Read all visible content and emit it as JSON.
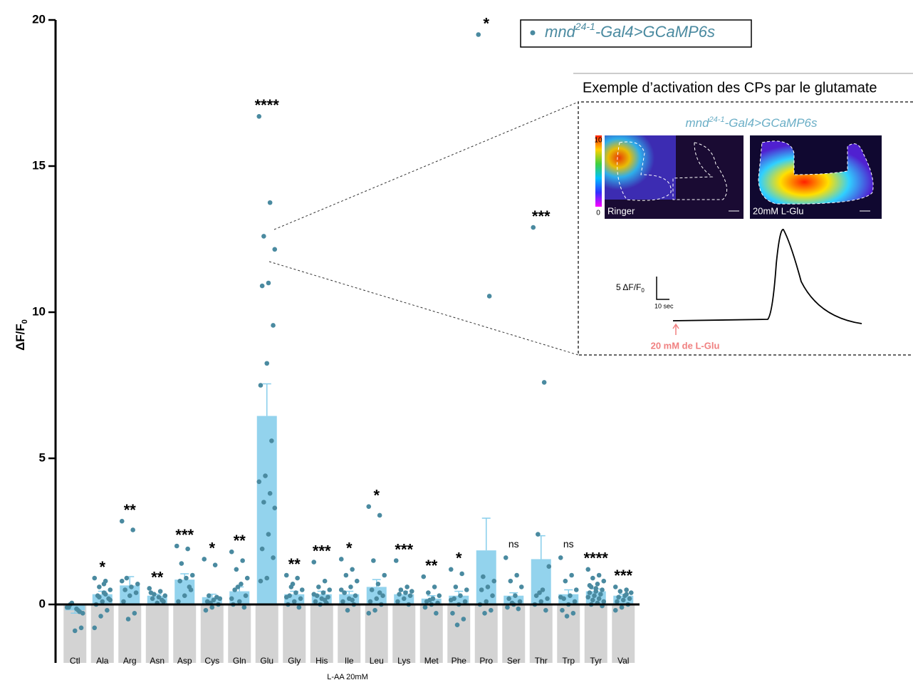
{
  "chart_data": {
    "type": "bar",
    "y_label": {
      "main": "ΔF/F",
      "sub": "0"
    },
    "x_label": "L-AA 20mM",
    "categories": [
      "Ctl",
      "Ala",
      "Arg",
      "Asn",
      "Asp",
      "Cys",
      "Gln",
      "Glu",
      "Gly",
      "His",
      "Ile",
      "Leu",
      "Lys",
      "Met",
      "Phe",
      "Pro",
      "Ser",
      "Thr",
      "Trp",
      "Tyr",
      "Val"
    ],
    "values": [
      -0.2,
      0.35,
      0.65,
      0.3,
      0.85,
      0.25,
      0.45,
      6.45,
      0.35,
      0.35,
      0.35,
      0.6,
      0.35,
      0.2,
      0.3,
      1.85,
      0.3,
      1.55,
      0.35,
      0.45,
      0.3
    ],
    "errors": [
      0.1,
      0.1,
      0.3,
      0.05,
      0.2,
      0.1,
      0.15,
      1.1,
      0.1,
      0.1,
      0.1,
      0.25,
      0.1,
      0.1,
      0.15,
      1.1,
      0.1,
      0.8,
      0.15,
      0.08,
      0.05
    ],
    "points": [
      [
        -0.1,
        -0.2,
        0.05,
        -0.3,
        -0.15,
        0.0,
        -0.8,
        -0.9,
        -0.1,
        -0.25
      ],
      [
        0.9,
        0.8,
        0.6,
        0.5,
        0.4,
        0.3,
        0.2,
        0.1,
        0.0,
        -0.2,
        -0.4,
        -0.8,
        0.35,
        0.25,
        0.15,
        0.7
      ],
      [
        2.85,
        2.55,
        0.9,
        0.7,
        0.6,
        0.5,
        0.4,
        0.3,
        0.1,
        -0.3,
        -0.5,
        0.8
      ],
      [
        0.55,
        0.45,
        0.35,
        0.3,
        0.25,
        0.2,
        0.1,
        0.05,
        0.4,
        0.15
      ],
      [
        2.0,
        1.9,
        1.4,
        1.0,
        0.9,
        0.8,
        0.5,
        0.3,
        0.1,
        0.6
      ],
      [
        1.55,
        1.35,
        0.3,
        0.2,
        0.15,
        0.1,
        0.0,
        -0.1,
        -0.2,
        0.25,
        0.05
      ],
      [
        1.8,
        1.5,
        1.2,
        0.9,
        0.7,
        0.5,
        0.3,
        0.1,
        0.0,
        -0.1,
        0.6,
        0.2
      ],
      [
        16.7,
        13.75,
        12.6,
        12.15,
        11.0,
        10.9,
        9.55,
        8.25,
        7.5,
        5.6,
        4.4,
        4.2,
        3.8,
        3.5,
        3.3,
        2.4,
        1.9,
        1.6,
        0.9,
        0.8
      ],
      [
        1.0,
        0.9,
        0.6,
        0.5,
        0.4,
        0.3,
        0.2,
        0.1,
        0.0,
        -0.1,
        0.7,
        0.25
      ],
      [
        1.45,
        0.8,
        0.6,
        0.5,
        0.4,
        0.3,
        0.25,
        0.2,
        0.1,
        0.05,
        0.0,
        0.35,
        0.15
      ],
      [
        1.55,
        1.2,
        1.0,
        0.8,
        0.6,
        0.4,
        0.3,
        0.2,
        0.1,
        0.0,
        -0.2,
        0.5,
        0.15
      ],
      [
        3.35,
        3.05,
        1.5,
        1.0,
        0.7,
        0.5,
        0.3,
        0.2,
        0.1,
        0.0,
        -0.2,
        -0.3,
        0.4
      ],
      [
        1.5,
        0.6,
        0.5,
        0.45,
        0.4,
        0.35,
        0.3,
        0.2,
        0.1,
        0.0
      ],
      [
        0.95,
        0.6,
        0.4,
        0.3,
        0.2,
        0.1,
        0.05,
        0.0,
        -0.1,
        -0.3,
        0.15
      ],
      [
        1.2,
        1.05,
        0.6,
        0.5,
        0.3,
        0.2,
        0.1,
        0.0,
        -0.3,
        -0.5,
        -0.7,
        0.15
      ],
      [
        19.5,
        10.55,
        0.95,
        0.8,
        0.6,
        0.5,
        0.3,
        0.1,
        0.0,
        -0.2,
        -0.3
      ],
      [
        1.6,
        1.0,
        0.8,
        0.6,
        0.3,
        0.2,
        0.1,
        0.0,
        -0.1,
        -0.15,
        0.05
      ],
      [
        12.9,
        7.6,
        2.4,
        1.3,
        0.5,
        0.3,
        0.2,
        0.1,
        0.0,
        -0.2,
        0.4
      ],
      [
        1.6,
        1.0,
        0.8,
        0.5,
        0.3,
        0.2,
        0.1,
        0.0,
        -0.2,
        -0.3,
        -0.4,
        0.25
      ],
      [
        1.2,
        1.0,
        0.9,
        0.8,
        0.7,
        0.6,
        0.5,
        0.45,
        0.4,
        0.35,
        0.3,
        0.25,
        0.2,
        0.15,
        0.1,
        0.05,
        0.0,
        -0.05,
        0.55,
        0.65
      ],
      [
        0.6,
        0.5,
        0.45,
        0.4,
        0.3,
        0.25,
        0.2,
        0.15,
        0.1,
        0.0,
        -0.1,
        -0.2,
        0.35
      ]
    ],
    "significance": [
      null,
      "*",
      "**",
      "**",
      "***",
      "*",
      "**",
      "****",
      "**",
      "***",
      "*",
      "*",
      "***",
      "**",
      "*",
      "*",
      "ns",
      "***",
      "ns",
      "****",
      "***"
    ],
    "color": "#87ceeb",
    "point_color": "#4a8aa0",
    "label_band_color": "#d3d3d3",
    "ylim": [
      -2,
      20
    ],
    "yticks": [
      0,
      5,
      10,
      15,
      20
    ],
    "legend": {
      "prefix": "mnd",
      "sup": "24-1",
      "suffix": "-Gal4>GCaMP6s"
    },
    "inset": {
      "title": "Exemple d’activation des CPs par le glutamate",
      "genotype": {
        "prefix": "mnd",
        "sup": "24-1",
        "suffix": "-Gal4>GCaMP6s"
      },
      "colorbar_max": "10",
      "colorbar_min": "0",
      "image_left": "Ringer",
      "image_right": "20mM L-Glu",
      "scale_y": {
        "main": "5 ΔF/F",
        "sub": "0"
      },
      "scale_x": "10 sec",
      "stimulus": "20 mM de L-Glu"
    }
  }
}
